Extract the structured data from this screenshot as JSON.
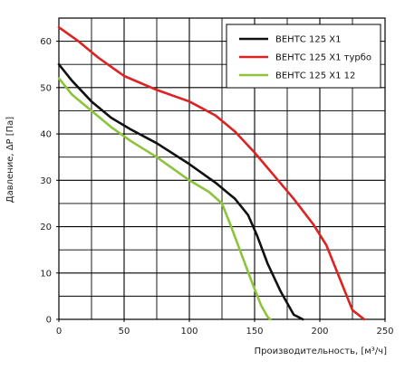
{
  "chart_data": {
    "type": "line",
    "xlabel": "Производительность, [м³/ч]",
    "ylabel": "Давление, ΔР [Па]",
    "xlim": [
      0,
      250
    ],
    "ylim": [
      0,
      65
    ],
    "x_ticks": [
      0,
      50,
      100,
      150,
      200,
      250
    ],
    "y_ticks": [
      0,
      10,
      20,
      30,
      40,
      50,
      60
    ],
    "x_ticks_label": [
      "0",
      "50",
      "100",
      "150",
      "200",
      "250"
    ],
    "y_ticks_label": [
      "0",
      "10",
      "20",
      "30",
      "40",
      "50",
      "60"
    ],
    "grid": true,
    "legend_position": "top-right",
    "series": [
      {
        "name": "ВЕНТС 125 Х1",
        "color": "#111111",
        "x": [
          0,
          10,
          25,
          40,
          55,
          75,
          100,
          120,
          135,
          145,
          152,
          160,
          170,
          180,
          187
        ],
        "y": [
          55,
          51.5,
          47,
          43.5,
          41,
          38,
          33.5,
          29.5,
          26,
          22.5,
          18,
          12,
          6,
          1,
          0
        ]
      },
      {
        "name": "ВЕНТС 125 Х1 турбо",
        "color": "#dd2222",
        "x": [
          0,
          15,
          30,
          50,
          75,
          100,
          120,
          135,
          150,
          165,
          180,
          195,
          205,
          215,
          225,
          234
        ],
        "y": [
          63,
          60,
          56.5,
          52.5,
          49.5,
          47,
          44,
          40.5,
          36,
          31,
          26,
          20.5,
          16,
          9,
          2,
          0
        ]
      },
      {
        "name": "ВЕНТС 125 Х1  12",
        "color": "#8cc43c",
        "x": [
          0,
          10,
          25,
          40,
          55,
          75,
          100,
          115,
          125,
          132,
          140,
          148,
          155,
          160,
          162
        ],
        "y": [
          52,
          48.5,
          45,
          41.5,
          38.5,
          35,
          30,
          27.5,
          25,
          20,
          14,
          8,
          3,
          0.5,
          0
        ]
      }
    ]
  }
}
